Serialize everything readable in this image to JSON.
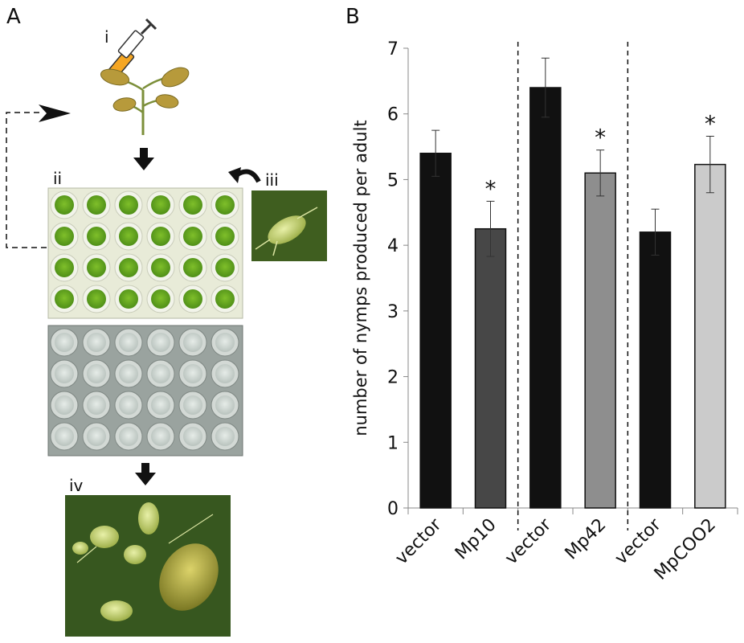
{
  "panels": {
    "a": {
      "letter": "A"
    },
    "b": {
      "letter": "B"
    }
  },
  "steps": {
    "i": "i",
    "ii": "ii",
    "iii": "iii",
    "iv": "iv"
  },
  "colors": {
    "bar_vector": "#111111",
    "bar_mp10": "#474747",
    "bar_mp42": "#8e8e8e",
    "bar_mpcoo2": "#cbcbcb",
    "leaf_green": "#6aa825",
    "plant_tan": "#b79a3b",
    "syringe_orange": "#f5a623"
  },
  "chart_data": {
    "type": "bar",
    "ylabel": "number of nymps produced per adult",
    "ylim": [
      0,
      7
    ],
    "yticks": [
      "0",
      "1",
      "2",
      "3",
      "4",
      "5",
      "6",
      "7"
    ],
    "categories": [
      "vector",
      "Mp10",
      "vector",
      "Mp42",
      "vector",
      "MpCOO2"
    ],
    "values": [
      5.4,
      4.25,
      6.4,
      5.1,
      4.2,
      5.23
    ],
    "errors": [
      0.35,
      0.42,
      0.45,
      0.35,
      0.35,
      0.43
    ],
    "significance": [
      "",
      "*",
      "",
      "*",
      "",
      "*"
    ],
    "bar_colors": [
      "#111111",
      "#474747",
      "#111111",
      "#8e8e8e",
      "#111111",
      "#cbcbcb"
    ],
    "group_separators_after": [
      1,
      3
    ],
    "grid": false
  }
}
